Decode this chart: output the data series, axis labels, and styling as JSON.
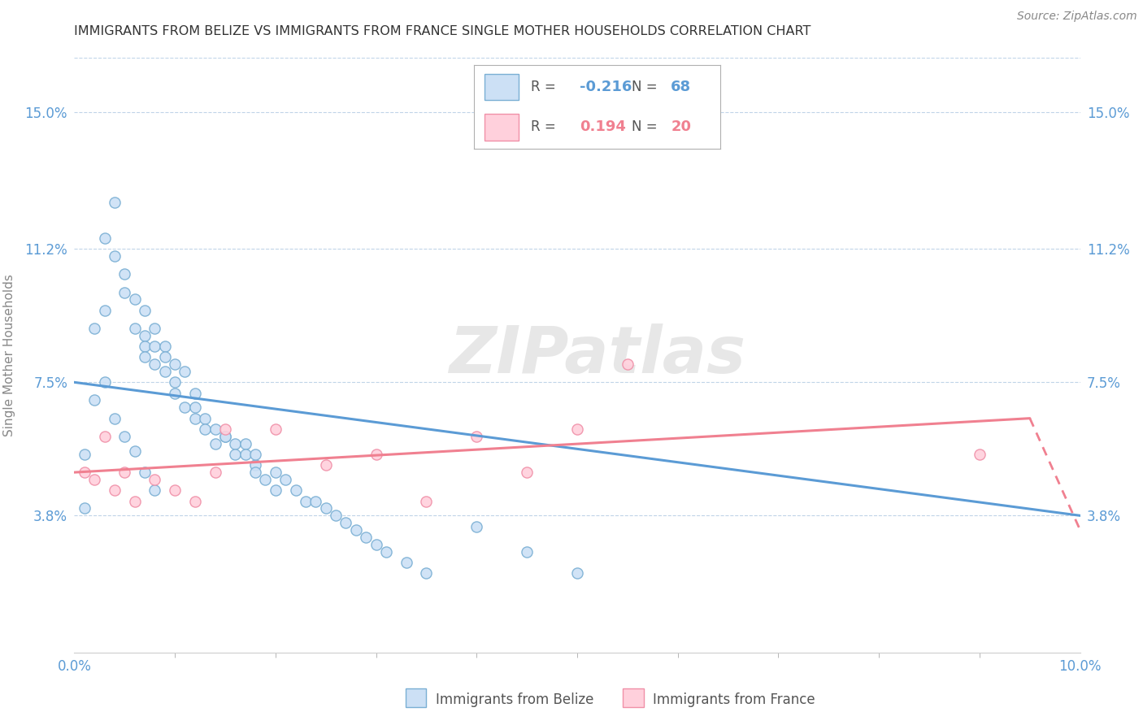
{
  "title": "IMMIGRANTS FROM BELIZE VS IMMIGRANTS FROM FRANCE SINGLE MOTHER HOUSEHOLDS CORRELATION CHART",
  "source": "Source: ZipAtlas.com",
  "xlabel_belize": "Immigrants from Belize",
  "xlabel_france": "Immigrants from France",
  "ylabel": "Single Mother Households",
  "xlim": [
    0.0,
    0.1
  ],
  "ylim": [
    0.0,
    0.165
  ],
  "yticks": [
    0.038,
    0.075,
    0.112,
    0.15
  ],
  "ytick_labels": [
    "3.8%",
    "7.5%",
    "11.2%",
    "15.0%"
  ],
  "xticks_shown": [
    0.0,
    0.1
  ],
  "xtick_labels_shown": [
    "0.0%",
    "10.0%"
  ],
  "xticks_minor": [
    0.01,
    0.02,
    0.03,
    0.04,
    0.05,
    0.06,
    0.07,
    0.08,
    0.09
  ],
  "legend_R_belize": "-0.216",
  "legend_N_belize": "68",
  "legend_R_france": "0.194",
  "legend_N_france": "20",
  "color_belize_fill": "#cce0f5",
  "color_belize_edge": "#7aafd4",
  "color_france_fill": "#ffd0dc",
  "color_france_edge": "#f090a8",
  "color_belize_line": "#5b9bd5",
  "color_france_line": "#f08090",
  "color_yaxis": "#5b9bd5",
  "color_xaxis_edge": "#5b9bd5",
  "watermark_color": "#d8d8d8",
  "belize_x": [
    0.001,
    0.002,
    0.003,
    0.003,
    0.004,
    0.004,
    0.005,
    0.005,
    0.006,
    0.006,
    0.007,
    0.007,
    0.007,
    0.007,
    0.008,
    0.008,
    0.008,
    0.009,
    0.009,
    0.009,
    0.01,
    0.01,
    0.01,
    0.011,
    0.011,
    0.012,
    0.012,
    0.012,
    0.013,
    0.013,
    0.014,
    0.014,
    0.015,
    0.016,
    0.016,
    0.017,
    0.017,
    0.018,
    0.018,
    0.019,
    0.02,
    0.02,
    0.021,
    0.022,
    0.023,
    0.024,
    0.025,
    0.026,
    0.027,
    0.028,
    0.029,
    0.03,
    0.031,
    0.033,
    0.035,
    0.04,
    0.045,
    0.05,
    0.001,
    0.002,
    0.003,
    0.004,
    0.005,
    0.006,
    0.007,
    0.008,
    0.015,
    0.018
  ],
  "belize_y": [
    0.055,
    0.09,
    0.115,
    0.095,
    0.125,
    0.11,
    0.1,
    0.105,
    0.098,
    0.09,
    0.095,
    0.088,
    0.085,
    0.082,
    0.09,
    0.085,
    0.08,
    0.085,
    0.082,
    0.078,
    0.08,
    0.075,
    0.072,
    0.078,
    0.068,
    0.072,
    0.068,
    0.065,
    0.065,
    0.062,
    0.062,
    0.058,
    0.06,
    0.058,
    0.055,
    0.058,
    0.055,
    0.052,
    0.05,
    0.048,
    0.05,
    0.045,
    0.048,
    0.045,
    0.042,
    0.042,
    0.04,
    0.038,
    0.036,
    0.034,
    0.032,
    0.03,
    0.028,
    0.025,
    0.022,
    0.035,
    0.028,
    0.022,
    0.04,
    0.07,
    0.075,
    0.065,
    0.06,
    0.056,
    0.05,
    0.045,
    0.06,
    0.055
  ],
  "france_x": [
    0.001,
    0.002,
    0.003,
    0.004,
    0.005,
    0.006,
    0.008,
    0.01,
    0.012,
    0.014,
    0.015,
    0.02,
    0.025,
    0.03,
    0.035,
    0.04,
    0.045,
    0.05,
    0.055,
    0.09
  ],
  "france_y": [
    0.05,
    0.048,
    0.06,
    0.045,
    0.05,
    0.042,
    0.048,
    0.045,
    0.042,
    0.05,
    0.062,
    0.062,
    0.052,
    0.055,
    0.042,
    0.06,
    0.05,
    0.062,
    0.08,
    0.055
  ]
}
